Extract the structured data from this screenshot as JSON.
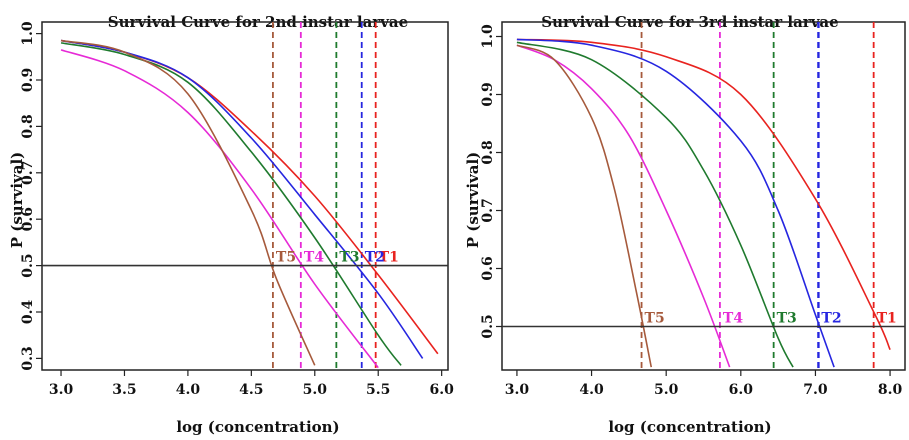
{
  "chart_data": [
    {
      "type": "line",
      "title": "Survival Curve for 2nd instar larvae",
      "xlabel": "log (concentration)",
      "ylabel": "P (survival)",
      "xlim": [
        2.85,
        6.05
      ],
      "ylim": [
        0.275,
        1.025
      ],
      "xticks": [
        "3.0",
        "3.5",
        "4.0",
        "4.5",
        "5.0",
        "5.5",
        "6.0"
      ],
      "yticks": [
        "0.3",
        "0.4",
        "0.5",
        "0.6",
        "0.7",
        "0.8",
        "0.9",
        "1.0"
      ],
      "reference_line_y": 0.5,
      "series": [
        {
          "label": "T1",
          "color": "#e8231f",
          "x": [
            3.0,
            3.5,
            4.0,
            4.5,
            5.0,
            5.5,
            5.97
          ],
          "y": [
            0.985,
            0.96,
            0.905,
            0.79,
            0.65,
            0.48,
            0.31
          ],
          "threshold_x": 5.48
        },
        {
          "label": "T2",
          "color": "#2626e0",
          "x": [
            3.0,
            3.5,
            4.0,
            4.5,
            5.0,
            5.5,
            5.85
          ],
          "y": [
            0.985,
            0.96,
            0.905,
            0.775,
            0.61,
            0.44,
            0.3
          ],
          "threshold_x": 5.37
        },
        {
          "label": "T3",
          "color": "#1f7a2e",
          "x": [
            3.0,
            3.5,
            4.0,
            4.5,
            5.0,
            5.5,
            5.68
          ],
          "y": [
            0.98,
            0.955,
            0.895,
            0.745,
            0.56,
            0.35,
            0.285
          ],
          "threshold_x": 5.17
        },
        {
          "label": "T4",
          "color": "#e62ad6",
          "x": [
            3.0,
            3.5,
            4.0,
            4.5,
            5.0,
            5.5
          ],
          "y": [
            0.965,
            0.92,
            0.83,
            0.665,
            0.46,
            0.28
          ],
          "threshold_x": 4.89
        },
        {
          "label": "T5",
          "color": "#a65a3c",
          "x": [
            3.0,
            3.5,
            4.0,
            4.5,
            4.7,
            5.0
          ],
          "y": [
            0.985,
            0.96,
            0.87,
            0.62,
            0.47,
            0.285
          ],
          "threshold_x": 4.67
        }
      ]
    },
    {
      "type": "line",
      "title": "Survival Curve for 3rd instar larvae",
      "xlabel": "log (concentration)",
      "ylabel": "P (survival)",
      "xlim": [
        2.8,
        8.2
      ],
      "ylim": [
        0.425,
        1.025
      ],
      "xticks": [
        "3.0",
        "4.0",
        "5.0",
        "6.0",
        "7.0",
        "8.0"
      ],
      "yticks": [
        "0.5",
        "0.6",
        "0.7",
        "0.8",
        "0.9",
        "1.0"
      ],
      "reference_line_y": 0.5,
      "series": [
        {
          "label": "T1",
          "color": "#e8231f",
          "x": [
            3.0,
            4.0,
            5.0,
            6.0,
            7.0,
            7.8,
            8.0
          ],
          "y": [
            0.995,
            0.99,
            0.965,
            0.9,
            0.72,
            0.52,
            0.46
          ],
          "threshold_x": 7.78
        },
        {
          "label": "T2",
          "color": "#2626e0",
          "x": [
            3.0,
            4.0,
            5.0,
            6.0,
            6.5,
            7.0,
            7.25
          ],
          "y": [
            0.995,
            0.985,
            0.94,
            0.82,
            0.7,
            0.52,
            0.43
          ],
          "threshold_x": 7.04
        },
        {
          "label": "T3",
          "color": "#1f7a2e",
          "x": [
            3.0,
            4.0,
            5.0,
            5.5,
            6.0,
            6.5,
            6.7
          ],
          "y": [
            0.99,
            0.96,
            0.86,
            0.77,
            0.64,
            0.48,
            0.43
          ],
          "threshold_x": 6.44
        },
        {
          "label": "T4",
          "color": "#e62ad6",
          "x": [
            3.0,
            3.5,
            4.0,
            4.5,
            5.0,
            5.5,
            5.85
          ],
          "y": [
            0.985,
            0.96,
            0.91,
            0.83,
            0.7,
            0.55,
            0.43
          ],
          "threshold_x": 5.72
        },
        {
          "label": "T5",
          "color": "#a65a3c",
          "x": [
            3.0,
            3.5,
            4.0,
            4.3,
            4.6,
            4.8
          ],
          "y": [
            0.985,
            0.96,
            0.86,
            0.74,
            0.56,
            0.43
          ],
          "threshold_x": 4.67
        }
      ]
    }
  ]
}
